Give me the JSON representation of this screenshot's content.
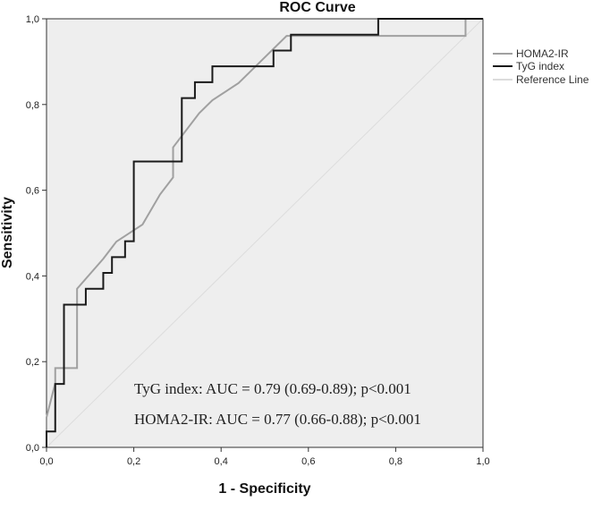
{
  "chart_data": {
    "type": "line",
    "title": "ROC Curve",
    "xlabel": "1 - Specificity",
    "ylabel": "Sensitivity",
    "xlim": [
      0,
      1
    ],
    "ylim": [
      0,
      1
    ],
    "x_ticks": [
      0,
      0.2,
      0.4,
      0.6,
      0.8,
      1.0
    ],
    "y_ticks": [
      0,
      0.2,
      0.4,
      0.6,
      0.8,
      1.0
    ],
    "x_tick_labels": [
      "0,0",
      "0,2",
      "0,4",
      "0,6",
      "0,8",
      "1,0"
    ],
    "y_tick_labels": [
      "0,0",
      "0,2",
      "0,4",
      "0,6",
      "0,8",
      "1,0"
    ],
    "grid": false,
    "legend_position": "right",
    "series": [
      {
        "name": "HOMA2-IR",
        "color": "#a0a0a0",
        "x": [
          0,
          0,
          0.02,
          0.02,
          0.04,
          0.07,
          0.07,
          0.13,
          0.16,
          0.22,
          0.26,
          0.29,
          0.29,
          0.35,
          0.38,
          0.44,
          0.48,
          0.55,
          0.96,
          0.96,
          1.0
        ],
        "y": [
          0,
          0.07,
          0.15,
          0.185,
          0.185,
          0.185,
          0.37,
          0.44,
          0.48,
          0.52,
          0.59,
          0.63,
          0.7,
          0.78,
          0.81,
          0.85,
          0.89,
          0.96,
          0.96,
          1.0,
          1.0
        ]
      },
      {
        "name": "TyG index",
        "color": "#1a1a1a",
        "x": [
          0,
          0,
          0.02,
          0.02,
          0.04,
          0.04,
          0.09,
          0.09,
          0.13,
          0.13,
          0.15,
          0.15,
          0.18,
          0.18,
          0.2,
          0.2,
          0.31,
          0.31,
          0.34,
          0.34,
          0.38,
          0.38,
          0.52,
          0.52,
          0.56,
          0.56,
          0.62,
          0.62,
          0.76,
          0.76,
          1.0
        ],
        "y": [
          0,
          0.037,
          0.037,
          0.148,
          0.148,
          0.333,
          0.333,
          0.37,
          0.37,
          0.407,
          0.407,
          0.444,
          0.444,
          0.481,
          0.481,
          0.667,
          0.667,
          0.815,
          0.815,
          0.852,
          0.852,
          0.889,
          0.889,
          0.926,
          0.926,
          0.963,
          0.963,
          0.963,
          0.963,
          1.0,
          1.0
        ]
      },
      {
        "name": "Reference Line",
        "color": "#dcdcdc",
        "x": [
          0,
          1
        ],
        "y": [
          0,
          1
        ]
      }
    ],
    "annotations": [
      "TyG index: AUC = 0.79 (0.69-0.89);  p<0.001",
      "HOMA2-IR: AUC = 0.77 (0.66-0.88); p<0.001"
    ]
  }
}
